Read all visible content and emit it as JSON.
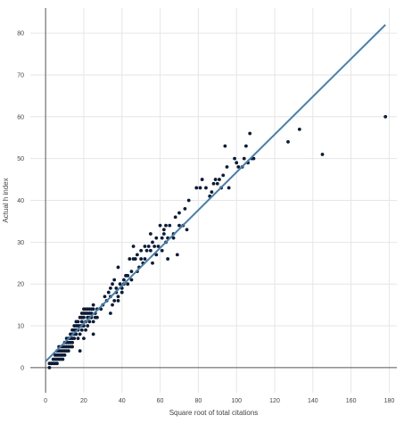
{
  "chart_data": {
    "type": "scatter",
    "title": "",
    "xlabel": "Square root of total citations",
    "ylabel": "Actual h index",
    "xlim": [
      -8,
      184
    ],
    "ylim": [
      -6,
      86
    ],
    "xticks": [
      0,
      20,
      40,
      60,
      80,
      100,
      120,
      140,
      160,
      180
    ],
    "yticks": [
      0,
      10,
      20,
      30,
      40,
      50,
      60,
      70,
      80
    ],
    "grid": true,
    "legend": "none",
    "colors": {
      "points": "#0d1b35",
      "fit_line": "#4a7fa8",
      "grid": "#e6e6e6"
    },
    "series": [
      {
        "type": "scatter",
        "points": [
          [
            2,
            0
          ],
          [
            2,
            1
          ],
          [
            3,
            1
          ],
          [
            3,
            1
          ],
          [
            4,
            1
          ],
          [
            4,
            2
          ],
          [
            5,
            1
          ],
          [
            5,
            2
          ],
          [
            5,
            3
          ],
          [
            6,
            1
          ],
          [
            6,
            2
          ],
          [
            6,
            3
          ],
          [
            6,
            4
          ],
          [
            7,
            2
          ],
          [
            7,
            3
          ],
          [
            7,
            4
          ],
          [
            7,
            5
          ],
          [
            8,
            2
          ],
          [
            8,
            3
          ],
          [
            8,
            4
          ],
          [
            8,
            5
          ],
          [
            9,
            2
          ],
          [
            9,
            3
          ],
          [
            9,
            4
          ],
          [
            9,
            5
          ],
          [
            10,
            3
          ],
          [
            10,
            4
          ],
          [
            10,
            5
          ],
          [
            10,
            6
          ],
          [
            11,
            4
          ],
          [
            11,
            5
          ],
          [
            11,
            6
          ],
          [
            11,
            7
          ],
          [
            12,
            4
          ],
          [
            12,
            5
          ],
          [
            12,
            6
          ],
          [
            12,
            7
          ],
          [
            13,
            5
          ],
          [
            13,
            6
          ],
          [
            13,
            7
          ],
          [
            13,
            8
          ],
          [
            14,
            5
          ],
          [
            14,
            6
          ],
          [
            14,
            7
          ],
          [
            14,
            8
          ],
          [
            14,
            9
          ],
          [
            15,
            7
          ],
          [
            15,
            8
          ],
          [
            15,
            9
          ],
          [
            15,
            10
          ],
          [
            16,
            8
          ],
          [
            16,
            9
          ],
          [
            16,
            10
          ],
          [
            16,
            11
          ],
          [
            17,
            7
          ],
          [
            17,
            9
          ],
          [
            17,
            10
          ],
          [
            17,
            11
          ],
          [
            18,
            4
          ],
          [
            18,
            8
          ],
          [
            18,
            10
          ],
          [
            18,
            12
          ],
          [
            19,
            9
          ],
          [
            19,
            10
          ],
          [
            19,
            11
          ],
          [
            19,
            12
          ],
          [
            19,
            13
          ],
          [
            20,
            7
          ],
          [
            20,
            10
          ],
          [
            20,
            12
          ],
          [
            20,
            13
          ],
          [
            20,
            14
          ],
          [
            21,
            9
          ],
          [
            21,
            11
          ],
          [
            21,
            13
          ],
          [
            21,
            14
          ],
          [
            22,
            10
          ],
          [
            22,
            12
          ],
          [
            22,
            13
          ],
          [
            22,
            14
          ],
          [
            23,
            11
          ],
          [
            23,
            12
          ],
          [
            23,
            13
          ],
          [
            23,
            14
          ],
          [
            24,
            12
          ],
          [
            24,
            13
          ],
          [
            24,
            14
          ],
          [
            25,
            8
          ],
          [
            25,
            11
          ],
          [
            25,
            14
          ],
          [
            25,
            15
          ],
          [
            26,
            12
          ],
          [
            26,
            13
          ],
          [
            27,
            12
          ],
          [
            27,
            14
          ],
          [
            29,
            14
          ],
          [
            30,
            15
          ],
          [
            31,
            17
          ],
          [
            32,
            16
          ],
          [
            33,
            18
          ],
          [
            34,
            13
          ],
          [
            34,
            17
          ],
          [
            34,
            19
          ],
          [
            35,
            15
          ],
          [
            35,
            20
          ],
          [
            36,
            16
          ],
          [
            36,
            21
          ],
          [
            37,
            18
          ],
          [
            37,
            19
          ],
          [
            38,
            16
          ],
          [
            38,
            17
          ],
          [
            38,
            24
          ],
          [
            39,
            20
          ],
          [
            40,
            18
          ],
          [
            40,
            19
          ],
          [
            41,
            20
          ],
          [
            41,
            21
          ],
          [
            42,
            22
          ],
          [
            43,
            20
          ],
          [
            43,
            22
          ],
          [
            44,
            26
          ],
          [
            45,
            21
          ],
          [
            45,
            23
          ],
          [
            46,
            26
          ],
          [
            46,
            29
          ],
          [
            47,
            26
          ],
          [
            48,
            23
          ],
          [
            48,
            27
          ],
          [
            49,
            24
          ],
          [
            50,
            26
          ],
          [
            50,
            28
          ],
          [
            51,
            25
          ],
          [
            52,
            26
          ],
          [
            52,
            29
          ],
          [
            53,
            28
          ],
          [
            54,
            29
          ],
          [
            55,
            28
          ],
          [
            55,
            32
          ],
          [
            56,
            25
          ],
          [
            56,
            30
          ],
          [
            57,
            29
          ],
          [
            58,
            27
          ],
          [
            58,
            31
          ],
          [
            59,
            29
          ],
          [
            60,
            34
          ],
          [
            61,
            28
          ],
          [
            61,
            31
          ],
          [
            62,
            32
          ],
          [
            62,
            33
          ],
          [
            63,
            30
          ],
          [
            63,
            34
          ],
          [
            64,
            26
          ],
          [
            64,
            31
          ],
          [
            65,
            34
          ],
          [
            67,
            31
          ],
          [
            67,
            32
          ],
          [
            68,
            36
          ],
          [
            69,
            27
          ],
          [
            70,
            34
          ],
          [
            70,
            37
          ],
          [
            72,
            34
          ],
          [
            73,
            38
          ],
          [
            74,
            33
          ],
          [
            75,
            40
          ],
          [
            79,
            43
          ],
          [
            81,
            43
          ],
          [
            82,
            45
          ],
          [
            84,
            43
          ],
          [
            86,
            41
          ],
          [
            87,
            42
          ],
          [
            88,
            44
          ],
          [
            89,
            45
          ],
          [
            90,
            44
          ],
          [
            91,
            45
          ],
          [
            92,
            43
          ],
          [
            93,
            46
          ],
          [
            94,
            53
          ],
          [
            95,
            48
          ],
          [
            96,
            43
          ],
          [
            99,
            50
          ],
          [
            100,
            49
          ],
          [
            101,
            48
          ],
          [
            103,
            48
          ],
          [
            104,
            50
          ],
          [
            105,
            53
          ],
          [
            106,
            49
          ],
          [
            107,
            56
          ],
          [
            108,
            50
          ],
          [
            109,
            50
          ],
          [
            127,
            54
          ],
          [
            133,
            57
          ],
          [
            145,
            51
          ],
          [
            178,
            60
          ]
        ]
      },
      {
        "type": "line",
        "points": [
          [
            0,
            1.5
          ],
          [
            178,
            82
          ]
        ]
      }
    ]
  }
}
